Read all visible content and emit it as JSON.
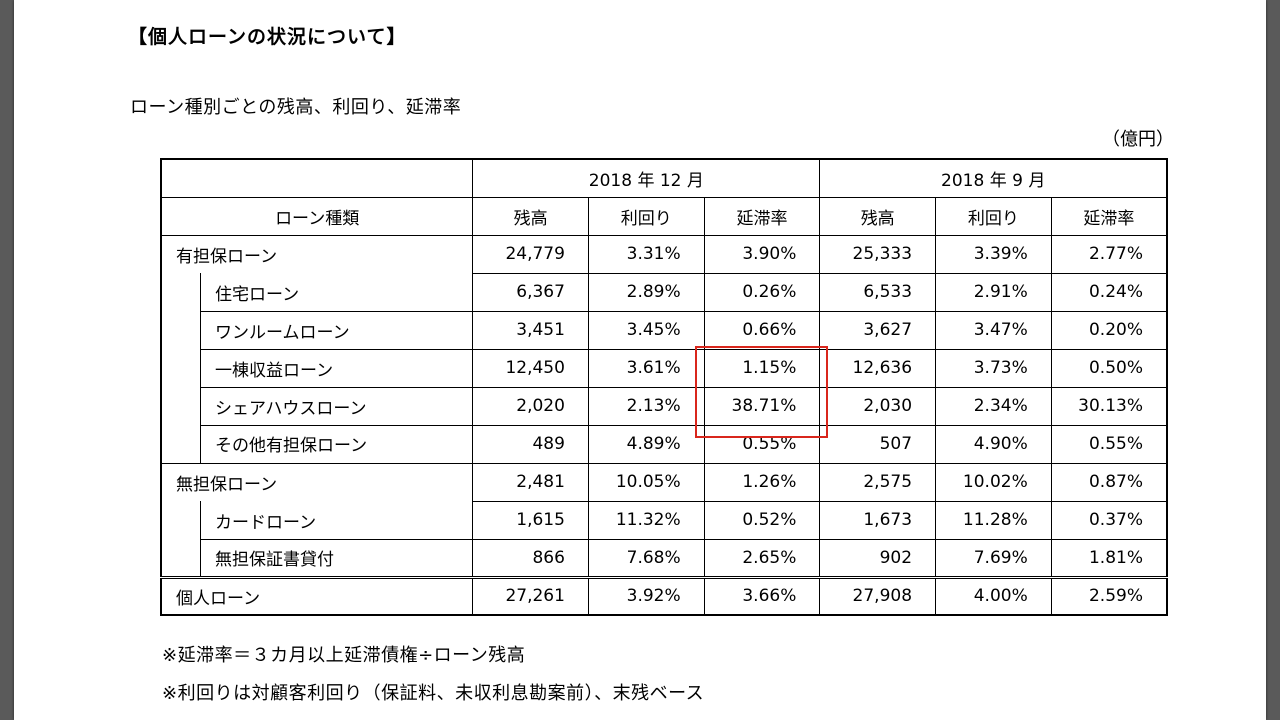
{
  "heading": "【個人ローンの状況について】",
  "subtitle": "ローン種別ごとの残高、利回り、延滞率",
  "unit": "（億円）",
  "periods": [
    "2018 年 12 月",
    "2018 年 9 月"
  ],
  "columns": {
    "type": "ローン種類",
    "balance": "残高",
    "yield": "利回り",
    "delinquency": "延滞率"
  },
  "rows": [
    {
      "name": "有担保ローン",
      "level": 0,
      "values": [
        "24,779",
        "3.31%",
        "3.90%",
        "25,333",
        "3.39%",
        "2.77%"
      ]
    },
    {
      "name": "住宅ローン",
      "level": 1,
      "values": [
        "6,367",
        "2.89%",
        "0.26%",
        "6,533",
        "2.91%",
        "0.24%"
      ]
    },
    {
      "name": "ワンルームローン",
      "level": 1,
      "values": [
        "3,451",
        "3.45%",
        "0.66%",
        "3,627",
        "3.47%",
        "0.20%"
      ]
    },
    {
      "name": "一棟収益ローン",
      "level": 1,
      "values": [
        "12,450",
        "3.61%",
        "1.15%",
        "12,636",
        "3.73%",
        "0.50%"
      ]
    },
    {
      "name": "シェアハウスローン",
      "level": 1,
      "values": [
        "2,020",
        "2.13%",
        "38.71%",
        "2,030",
        "2.34%",
        "30.13%"
      ]
    },
    {
      "name": "その他有担保ローン",
      "level": 1,
      "values": [
        "489",
        "4.89%",
        "0.55%",
        "507",
        "4.90%",
        "0.55%"
      ]
    },
    {
      "name": "無担保ローン",
      "level": 0,
      "values": [
        "2,481",
        "10.05%",
        "1.26%",
        "2,575",
        "10.02%",
        "0.87%"
      ]
    },
    {
      "name": "カードローン",
      "level": 1,
      "values": [
        "1,615",
        "11.32%",
        "0.52%",
        "1,673",
        "11.28%",
        "0.37%"
      ]
    },
    {
      "name": "無担保証書貸付",
      "level": 1,
      "values": [
        "866",
        "7.68%",
        "2.65%",
        "902",
        "7.69%",
        "1.81%"
      ]
    }
  ],
  "total": {
    "name": "個人ローン",
    "values": [
      "27,261",
      "3.92%",
      "3.66%",
      "27,908",
      "4.00%",
      "2.59%"
    ]
  },
  "notes": [
    "※延滞率＝３カ月以上延滞債権÷ローン残高",
    "※利回りは対顧客利回り（保証料、未収利息勘案前）、末残ベース"
  ],
  "highlight_color": "#d9261c"
}
